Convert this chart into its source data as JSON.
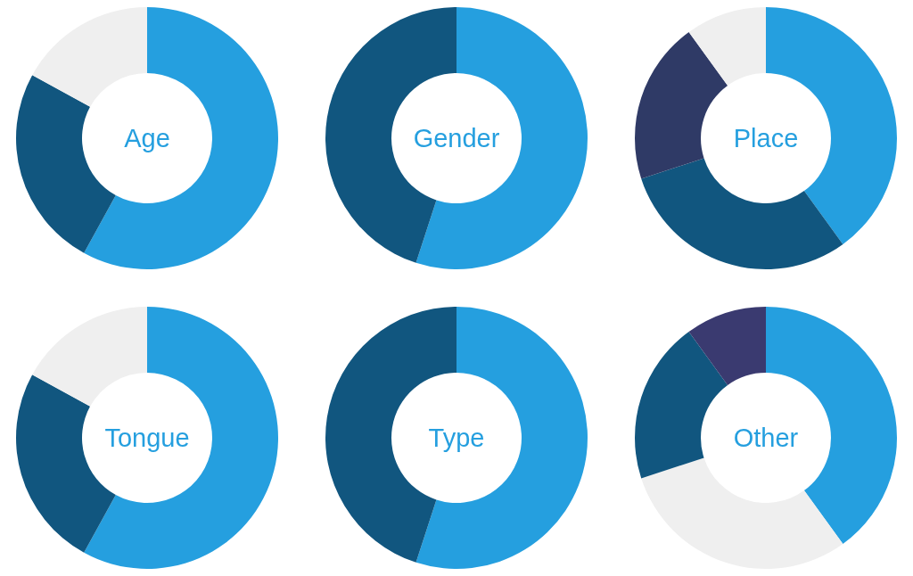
{
  "chart_data": [
    {
      "type": "donut",
      "title": "Age",
      "categories": [
        null,
        null,
        null
      ],
      "values": [
        58,
        25,
        17
      ],
      "colors": [
        "#259fdf",
        "#11567f",
        "#efefef"
      ]
    },
    {
      "type": "donut",
      "title": "Gender",
      "categories": [
        null,
        null
      ],
      "values": [
        55,
        45
      ],
      "colors": [
        "#259fdf",
        "#11567f"
      ]
    },
    {
      "type": "donut",
      "title": "Place",
      "categories": [
        null,
        null,
        null,
        null
      ],
      "values": [
        40,
        30,
        20,
        10
      ],
      "colors": [
        "#259fdf",
        "#11567f",
        "#2f3a66",
        "#efefef"
      ]
    },
    {
      "type": "donut",
      "title": "Tongue",
      "categories": [
        null,
        null,
        null
      ],
      "values": [
        58,
        25,
        17
      ],
      "colors": [
        "#259fdf",
        "#11567f",
        "#efefef"
      ]
    },
    {
      "type": "donut",
      "title": "Type",
      "categories": [
        null,
        null
      ],
      "values": [
        55,
        45
      ],
      "colors": [
        "#259fdf",
        "#11567f"
      ]
    },
    {
      "type": "donut",
      "title": "Other",
      "categories": [
        null,
        null,
        null,
        null
      ],
      "values": [
        40,
        30,
        20,
        10
      ],
      "colors": [
        "#259fdf",
        "#efefef",
        "#11567f",
        "#3a3a70"
      ]
    }
  ]
}
